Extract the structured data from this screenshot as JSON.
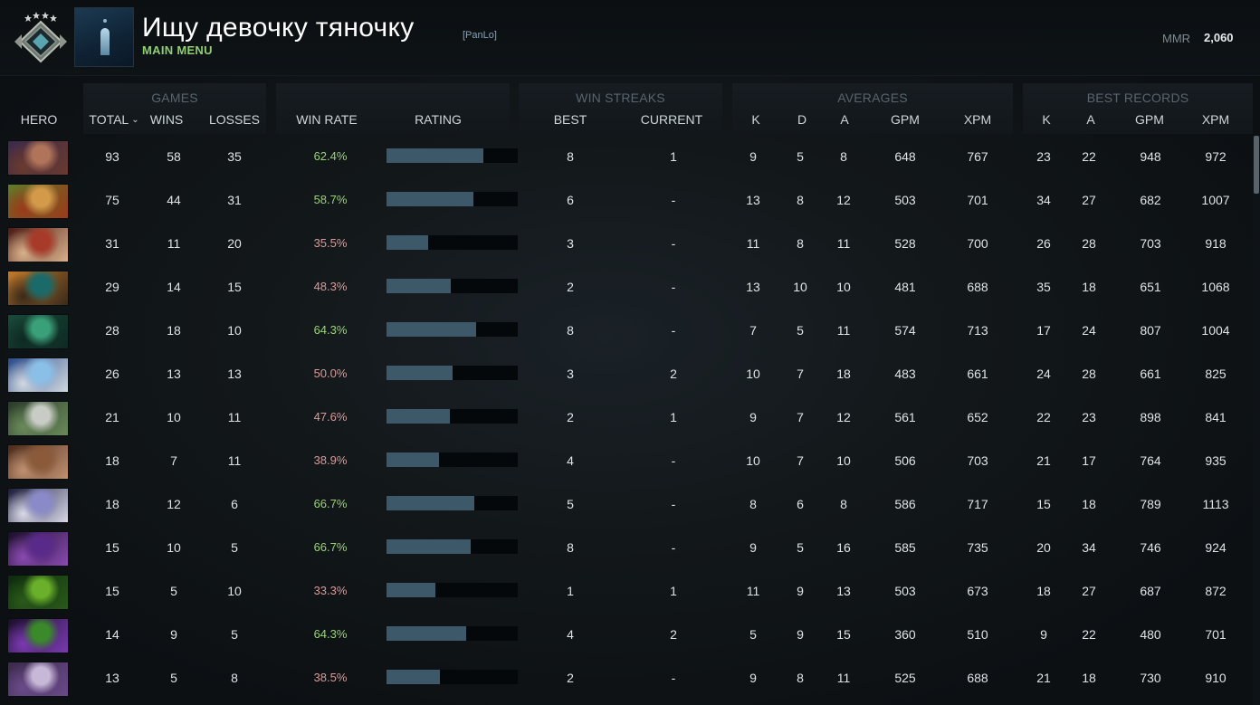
{
  "profile": {
    "name": "Ищу девочку тяночку",
    "tag": "[PanLo]",
    "menu_label": "MAIN MENU",
    "mmr_label": "MMR",
    "mmr_value": "2,060",
    "rank_icon": "rank-medal-icon",
    "avatar_icon": "profile-avatar-icon"
  },
  "colors": {
    "win_rate_good": "#9bd17a",
    "win_rate_bad": "#d99a9a",
    "bar_fill": "#3c5869",
    "bar_track": "#05080a",
    "menu_label": "#8fce72"
  },
  "groups": {
    "games": "GAMES",
    "win_streaks": "WIN STREAKS",
    "averages": "AVERAGES",
    "best_records": "BEST RECORDS"
  },
  "columns": {
    "hero": "HERO",
    "total": "TOTAL",
    "wins": "WINS",
    "losses": "LOSSES",
    "win_rate": "WIN RATE",
    "rating": "RATING",
    "best": "BEST",
    "current": "CURRENT",
    "avg_k": "K",
    "avg_d": "D",
    "avg_a": "A",
    "avg_gpm": "GPM",
    "avg_xpm": "XPM",
    "best_k": "K",
    "best_a": "A",
    "best_gpm": "GPM",
    "best_xpm": "XPM"
  },
  "heroes": [
    {
      "portrait": [
        "#3b2a4a",
        "#b0745a",
        "#6a3a2f"
      ],
      "total": "93",
      "wins": "58",
      "losses": "35",
      "win_rate": "62.4%",
      "positive": true,
      "rating": 0.74,
      "best": "8",
      "current": "1",
      "k": "9",
      "d": "5",
      "a": "8",
      "gpm": "648",
      "xpm": "767",
      "bk": "23",
      "ba": "22",
      "bgpm": "948",
      "bxpm": "972"
    },
    {
      "portrait": [
        "#5f7a2a",
        "#d39a4a",
        "#9a3a1a"
      ],
      "total": "75",
      "wins": "44",
      "losses": "31",
      "win_rate": "58.7%",
      "positive": true,
      "rating": 0.66,
      "best": "6",
      "current": "-",
      "k": "13",
      "d": "8",
      "a": "12",
      "gpm": "503",
      "xpm": "701",
      "bk": "34",
      "ba": "27",
      "bgpm": "682",
      "bxpm": "1007"
    },
    {
      "portrait": [
        "#4a1a14",
        "#a83a2a",
        "#d8b08a"
      ],
      "total": "31",
      "wins": "11",
      "losses": "20",
      "win_rate": "35.5%",
      "positive": false,
      "rating": 0.32,
      "best": "3",
      "current": "-",
      "k": "11",
      "d": "8",
      "a": "11",
      "gpm": "528",
      "xpm": "700",
      "bk": "26",
      "ba": "28",
      "bgpm": "703",
      "bxpm": "918"
    },
    {
      "portrait": [
        "#c27a2a",
        "#1a6a6a",
        "#3a2a1a"
      ],
      "total": "29",
      "wins": "14",
      "losses": "15",
      "win_rate": "48.3%",
      "positive": false,
      "rating": 0.49,
      "best": "2",
      "current": "-",
      "k": "13",
      "d": "10",
      "a": "10",
      "gpm": "481",
      "xpm": "688",
      "bk": "35",
      "ba": "18",
      "bgpm": "651",
      "bxpm": "1068"
    },
    {
      "portrait": [
        "#1a4a3a",
        "#3aa07a",
        "#0e2a22"
      ],
      "total": "28",
      "wins": "18",
      "losses": "10",
      "win_rate": "64.3%",
      "positive": true,
      "rating": 0.68,
      "best": "8",
      "current": "-",
      "k": "7",
      "d": "5",
      "a": "11",
      "gpm": "574",
      "xpm": "713",
      "bk": "17",
      "ba": "24",
      "bgpm": "807",
      "bxpm": "1004"
    },
    {
      "portrait": [
        "#2a4a8a",
        "#8ac0e8",
        "#d0d8e0"
      ],
      "total": "26",
      "wins": "13",
      "losses": "13",
      "win_rate": "50.0%",
      "positive": false,
      "rating": 0.5,
      "best": "3",
      "current": "2",
      "k": "10",
      "d": "7",
      "a": "18",
      "gpm": "483",
      "xpm": "661",
      "bk": "24",
      "ba": "28",
      "bgpm": "661",
      "bxpm": "825"
    },
    {
      "portrait": [
        "#2a3a2a",
        "#c8ccc4",
        "#6a8a5a"
      ],
      "total": "21",
      "wins": "10",
      "losses": "11",
      "win_rate": "47.6%",
      "positive": false,
      "rating": 0.48,
      "best": "2",
      "current": "1",
      "k": "9",
      "d": "7",
      "a": "12",
      "gpm": "561",
      "xpm": "652",
      "bk": "22",
      "ba": "23",
      "bgpm": "898",
      "bxpm": "841"
    },
    {
      "portrait": [
        "#4a2a1a",
        "#8a5a3a",
        "#c09070"
      ],
      "total": "18",
      "wins": "7",
      "losses": "11",
      "win_rate": "38.9%",
      "positive": false,
      "rating": 0.4,
      "best": "4",
      "current": "-",
      "k": "10",
      "d": "7",
      "a": "10",
      "gpm": "506",
      "xpm": "703",
      "bk": "21",
      "ba": "17",
      "bgpm": "764",
      "bxpm": "935"
    },
    {
      "portrait": [
        "#1a1a3a",
        "#8a8ac8",
        "#d8d8e8"
      ],
      "total": "18",
      "wins": "12",
      "losses": "6",
      "win_rate": "66.7%",
      "positive": true,
      "rating": 0.67,
      "best": "5",
      "current": "-",
      "k": "8",
      "d": "6",
      "a": "8",
      "gpm": "586",
      "xpm": "717",
      "bk": "15",
      "ba": "18",
      "bgpm": "789",
      "bxpm": "1113"
    },
    {
      "portrait": [
        "#1a0e2a",
        "#5a2a8a",
        "#8a4ab0"
      ],
      "total": "15",
      "wins": "10",
      "losses": "5",
      "win_rate": "66.7%",
      "positive": true,
      "rating": 0.64,
      "best": "8",
      "current": "-",
      "k": "9",
      "d": "5",
      "a": "16",
      "gpm": "585",
      "xpm": "735",
      "bk": "20",
      "ba": "34",
      "bgpm": "746",
      "bxpm": "924"
    },
    {
      "portrait": [
        "#0e2a0e",
        "#6ab02a",
        "#2a5a1a"
      ],
      "total": "15",
      "wins": "5",
      "losses": "10",
      "win_rate": "33.3%",
      "positive": false,
      "rating": 0.37,
      "best": "1",
      "current": "1",
      "k": "11",
      "d": "9",
      "a": "13",
      "gpm": "503",
      "xpm": "673",
      "bk": "18",
      "ba": "27",
      "bgpm": "687",
      "bxpm": "872"
    },
    {
      "portrait": [
        "#1a0e2a",
        "#3a8a2a",
        "#7a3ab0"
      ],
      "total": "14",
      "wins": "9",
      "losses": "5",
      "win_rate": "64.3%",
      "positive": true,
      "rating": 0.61,
      "best": "4",
      "current": "2",
      "k": "5",
      "d": "9",
      "a": "15",
      "gpm": "360",
      "xpm": "510",
      "bk": "9",
      "ba": "22",
      "bgpm": "480",
      "bxpm": "701"
    },
    {
      "portrait": [
        "#3a2a4a",
        "#c8b8d8",
        "#6a4a8a"
      ],
      "total": "13",
      "wins": "5",
      "losses": "8",
      "win_rate": "38.5%",
      "positive": false,
      "rating": 0.41,
      "best": "2",
      "current": "-",
      "k": "9",
      "d": "8",
      "a": "11",
      "gpm": "525",
      "xpm": "688",
      "bk": "21",
      "ba": "18",
      "bgpm": "730",
      "bxpm": "910"
    }
  ]
}
